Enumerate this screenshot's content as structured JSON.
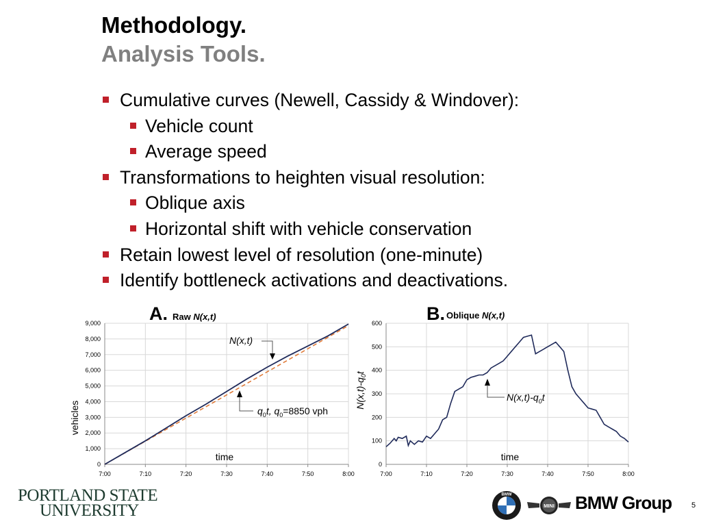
{
  "slide": {
    "title": "Methodology.",
    "subtitle": "Analysis Tools.",
    "page_number": "5",
    "bullets": [
      {
        "level": 1,
        "text": "Cumulative curves (Newell, Cassidy & Windover):"
      },
      {
        "level": 2,
        "text": "Vehicle count"
      },
      {
        "level": 2,
        "text": "Average speed"
      },
      {
        "level": 1,
        "text": "Transformations to heighten visual resolution:"
      },
      {
        "level": 2,
        "text": "Oblique axis"
      },
      {
        "level": 2,
        "text": "Horizontal shift with vehicle conservation"
      },
      {
        "level": 1,
        "text": "Retain lowest level of resolution (one-minute)"
      },
      {
        "level": 1,
        "text": "Identify bottleneck activations and deactivations."
      }
    ],
    "colors": {
      "bullet": "#c0202a",
      "subtitle": "#808080",
      "curve": "#1f2a5a",
      "reference_line": "#e07b39"
    }
  },
  "logos": {
    "psu_line1": "PORTLAND STATE",
    "psu_line2": "UNIVERSITY",
    "bmw_badge": "BMW",
    "mini_badge": "MINI",
    "bmw_group": "BMW Group"
  },
  "chart_data": [
    {
      "type": "line",
      "panel_letter": "A.",
      "title": "Raw",
      "title_math": "N(x,t)",
      "xlabel": "time",
      "ylabel": "vehicles",
      "x_ticks": [
        "7:00",
        "7:10",
        "7:20",
        "7:30",
        "7:40",
        "7:50",
        "8:00"
      ],
      "y_ticks": [
        "0",
        "1,000",
        "2,000",
        "3,000",
        "4,000",
        "5,000",
        "6,000",
        "7,000",
        "8,000",
        "9,000"
      ],
      "xlim": [
        0,
        60
      ],
      "ylim": [
        0,
        9000
      ],
      "grid": true,
      "series": [
        {
          "x": [
            0,
            5,
            10,
            15,
            20,
            25,
            30,
            35,
            40,
            45,
            50,
            55,
            60
          ],
          "values": [
            0,
            750,
            1500,
            2300,
            3100,
            3850,
            4650,
            5450,
            6200,
            6900,
            7550,
            8200,
            8950
          ]
        },
        {
          "x": [
            0,
            60
          ],
          "values": [
            0,
            8850
          ],
          "style": "dashed"
        }
      ],
      "annotations": [
        {
          "text": "N(x,t)",
          "points_to": {
            "x": 42,
            "y": 6550
          }
        },
        {
          "text_base": "q",
          "text_sub": "0",
          "text_mid": "t, q",
          "text_sub2": "0",
          "text_end": "=8850 vph",
          "points_to": {
            "x": 34,
            "y": 5000
          }
        }
      ]
    },
    {
      "type": "line",
      "panel_letter": "B.",
      "title": "Oblique",
      "title_math": "N(x,t)",
      "xlabel": "time",
      "ylabel_main": "N(x,t)-q",
      "ylabel_sub": "0",
      "ylabel_end": "t",
      "x_ticks": [
        "7:00",
        "7:10",
        "7:20",
        "7:30",
        "7:40",
        "7:50",
        "8:00"
      ],
      "y_ticks": [
        "0",
        "100",
        "200",
        "300",
        "400",
        "500",
        "600"
      ],
      "xlim": [
        0,
        60
      ],
      "ylim": [
        0,
        600
      ],
      "grid": true,
      "series": [
        {
          "x": [
            0,
            1,
            2,
            2.5,
            3,
            4,
            5,
            5.5,
            6,
            7,
            8,
            9,
            10,
            11,
            12,
            13,
            14,
            15,
            16,
            17,
            18,
            19,
            20,
            21,
            22,
            23,
            24,
            25,
            26,
            27,
            28,
            29,
            30,
            31,
            32,
            33,
            34,
            35,
            36,
            37,
            38,
            39,
            40,
            41,
            42,
            43,
            44,
            45,
            46,
            47,
            48,
            49,
            50,
            51,
            52,
            53,
            54,
            55,
            56,
            57,
            58,
            59,
            60
          ],
          "values": [
            75,
            90,
            110,
            100,
            115,
            110,
            120,
            80,
            100,
            85,
            100,
            95,
            120,
            110,
            130,
            150,
            190,
            200,
            260,
            310,
            320,
            330,
            360,
            370,
            375,
            380,
            380,
            390,
            410,
            420,
            430,
            440,
            460,
            480,
            500,
            520,
            540,
            545,
            550,
            470,
            480,
            490,
            500,
            510,
            520,
            500,
            480,
            400,
            330,
            300,
            280,
            260,
            240,
            235,
            230,
            200,
            170,
            160,
            150,
            140,
            120,
            110,
            95
          ]
        }
      ],
      "annotations": [
        {
          "text_main": "N(x,t)-q",
          "text_sub": "0",
          "text_end": "t",
          "points_to": {
            "x": 25,
            "y": 380
          }
        }
      ]
    }
  ]
}
